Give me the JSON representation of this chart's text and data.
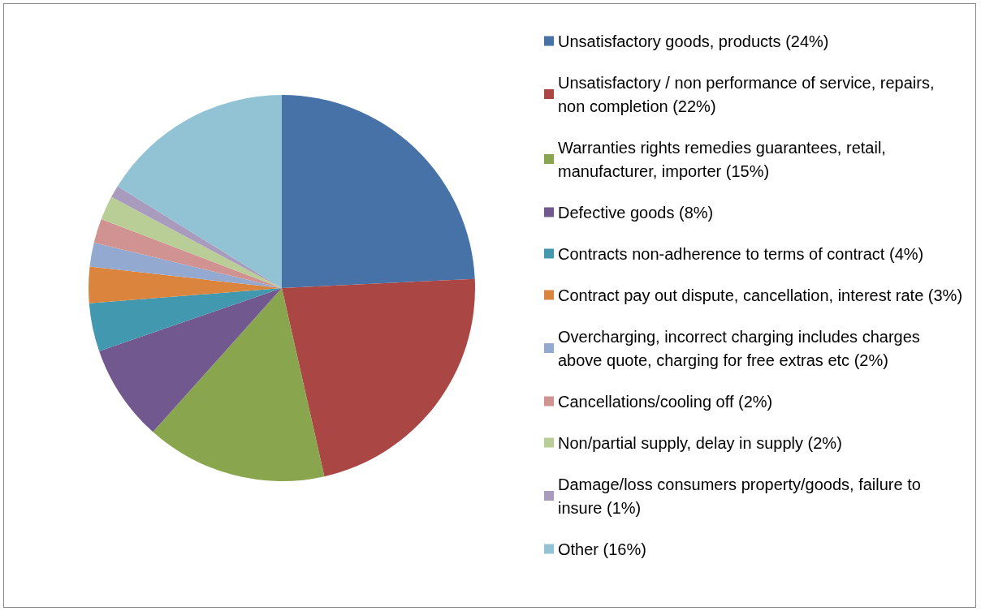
{
  "chart_data": {
    "type": "pie",
    "categories": [
      "Unsatisfactory goods, products (24%)",
      "Unsatisfactory / non performance of service, repairs, non completion (22%)",
      "Warranties rights remedies guarantees, retail, manufacturer, importer (15%)",
      "Defective goods (8%)",
      "Contracts non-adherence to terms of contract (4%)",
      "Contract pay out dispute, cancellation, interest rate (3%)",
      "Overcharging, incorrect charging includes charges above quote, charging for free extras etc (2%)",
      "Cancellations/cooling off (2%)",
      "Non/partial supply, delay in supply (2%)",
      "Damage/loss consumers property/goods, failure to insure (1%)",
      "Other (16%)"
    ],
    "values": [
      24,
      22,
      15,
      8,
      4,
      3,
      2,
      2,
      2,
      1,
      16
    ],
    "colors": [
      "#4672a8",
      "#aa4644",
      "#89a54e",
      "#71588f",
      "#4198af",
      "#db843d",
      "#93a9cf",
      "#d19392",
      "#b9cd96",
      "#a99bbd",
      "#92c3d4"
    ],
    "legend": "right"
  }
}
